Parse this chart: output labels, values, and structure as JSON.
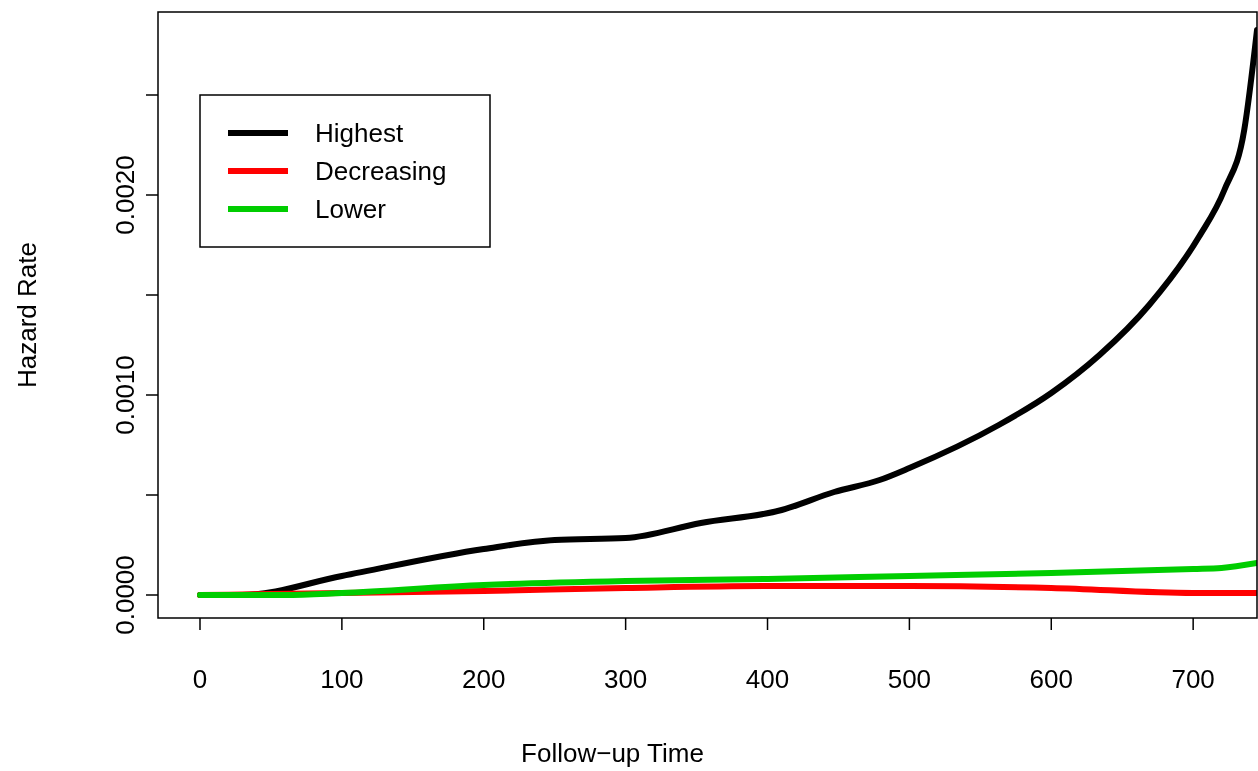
{
  "chart_data": {
    "type": "line",
    "xlabel": "Follow−up Time",
    "ylabel": "Hazard Rate",
    "xlim": [
      -29.6,
      745
    ],
    "ylim": [
      -0.000115,
      0.002915
    ],
    "xticks": [
      0,
      100,
      200,
      300,
      400,
      500,
      600,
      700
    ],
    "yticks": [
      {
        "value": 0,
        "label": "0.0000"
      },
      {
        "value": 0.0005,
        "label": null
      },
      {
        "value": 0.001,
        "label": "0.0010"
      },
      {
        "value": 0.0015,
        "label": null
      },
      {
        "value": 0.002,
        "label": "0.0020"
      },
      {
        "value": 0.0025,
        "label": null
      }
    ],
    "grid": false,
    "legend": "top left",
    "line_style": "solid",
    "marker": "none",
    "series": [
      {
        "name": "Highest",
        "color": "#000000",
        "x": [
          0,
          30,
          100,
          200,
          250,
          300,
          353,
          410,
          447,
          479,
          500,
          563,
          600,
          634,
          669,
          704,
          722,
          736,
          745
        ],
        "values": [
          0,
          0,
          9.5e-05,
          0.00023,
          0.000275,
          0.000285,
          0.00036,
          0.000425,
          0.000515,
          0.000575,
          0.000635,
          0.00085,
          0.00101,
          0.0012,
          0.00145,
          0.00179,
          0.002025,
          0.002325,
          0.002825
        ]
      },
      {
        "name": "Decreasing",
        "color": "#ff0000",
        "x": [
          0,
          200,
          300,
          400,
          500,
          600,
          700,
          745
        ],
        "values": [
          0,
          2e-05,
          3.5e-05,
          4.5e-05,
          4.5e-05,
          3.5e-05,
          1e-05,
          1e-05
        ]
      },
      {
        "name": "Lower",
        "color": "#00cd00",
        "x": [
          0,
          60,
          100,
          200,
          300,
          400,
          500,
          600,
          700,
          720,
          745
        ],
        "values": [
          0,
          0,
          1e-05,
          5e-05,
          7e-05,
          8e-05,
          9.5e-05,
          0.00011,
          0.00013,
          0.000135,
          0.00016
        ]
      }
    ]
  }
}
